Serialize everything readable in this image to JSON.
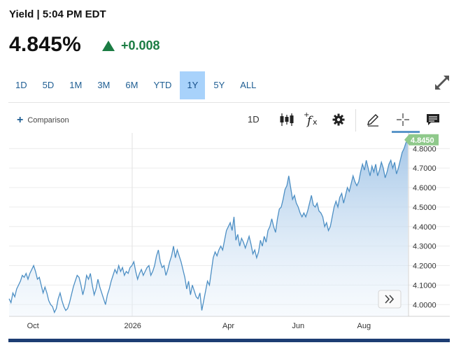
{
  "header": {
    "title": "Yield | 5:04 PM EDT"
  },
  "quote": {
    "price": "4.845%",
    "change": "+0.008",
    "direction_icon": "up-triangle-icon",
    "change_color": "#1b7c43"
  },
  "ranges": {
    "items": [
      "1D",
      "5D",
      "1M",
      "3M",
      "6M",
      "YTD",
      "1Y",
      "5Y",
      "ALL"
    ],
    "active": "1Y"
  },
  "toolbar": {
    "comparison_label": "Comparison",
    "interval": "1D",
    "icons": [
      "candlestick-icon",
      "function-icon",
      "gear-icon",
      "pencil-icon",
      "crosshair-icon",
      "comment-icon"
    ],
    "expand_icon": "expand-icon",
    "scroll_icon": "double-chevron-right-icon"
  },
  "colors": {
    "accent": "#1f5e93",
    "active_tab_bg": "#a8d2fb",
    "line": "#4d8fc4",
    "last_label_bg": "#8fc98b"
  },
  "chart_data": {
    "type": "area",
    "x_tick_labels": [
      "Oct",
      "2026",
      "Apr",
      "Jun",
      "Aug"
    ],
    "y_tick_labels": [
      "4.0000",
      "4.1000",
      "4.2000",
      "4.3000",
      "4.4000",
      "4.5000",
      "4.6000",
      "4.7000",
      "4.8000"
    ],
    "last_value_label": "4.8450",
    "ylim": [
      3.94,
      4.88
    ],
    "grid": "horizontal",
    "series": [
      {
        "values": [
          4.03,
          4.01,
          4.06,
          4.04,
          4.08,
          4.1,
          4.12,
          4.15,
          4.14,
          4.16,
          4.13,
          4.16,
          4.18,
          4.2,
          4.17,
          4.13,
          4.14,
          4.1,
          4.06,
          4.09,
          4.06,
          4.02,
          4.0,
          3.99,
          3.96,
          3.98,
          4.03,
          4.06,
          4.02,
          3.99,
          3.97,
          3.98,
          4.01,
          4.05,
          4.09,
          4.12,
          4.15,
          4.14,
          4.1,
          4.05,
          4.09,
          4.15,
          4.13,
          4.16,
          4.1,
          4.05,
          4.08,
          4.13,
          4.09,
          4.06,
          4.03,
          4.0,
          4.05,
          4.08,
          4.12,
          4.15,
          4.18,
          4.16,
          4.2,
          4.17,
          4.19,
          4.15,
          4.17,
          4.16,
          4.19,
          4.2,
          4.22,
          4.17,
          4.13,
          4.16,
          4.18,
          4.15,
          4.17,
          4.19,
          4.2,
          4.15,
          4.17,
          4.2,
          4.25,
          4.28,
          4.22,
          4.19,
          4.2,
          4.15,
          4.18,
          4.22,
          4.25,
          4.3,
          4.24,
          4.28,
          4.25,
          4.22,
          4.18,
          4.14,
          4.08,
          4.12,
          4.05,
          4.1,
          4.07,
          4.04,
          4.03,
          4.06,
          3.97,
          4.02,
          4.07,
          4.12,
          4.1,
          4.17,
          4.24,
          4.27,
          4.25,
          4.28,
          4.3,
          4.28,
          4.33,
          4.38,
          4.4,
          4.42,
          4.38,
          4.45,
          4.33,
          4.36,
          4.3,
          4.34,
          4.32,
          4.29,
          4.32,
          4.35,
          4.31,
          4.26,
          4.28,
          4.24,
          4.27,
          4.33,
          4.3,
          4.35,
          4.32,
          4.38,
          4.4,
          4.44,
          4.4,
          4.37,
          4.44,
          4.49,
          4.5,
          4.54,
          4.59,
          4.61,
          4.66,
          4.6,
          4.54,
          4.56,
          4.52,
          4.5,
          4.47,
          4.45,
          4.47,
          4.45,
          4.48,
          4.52,
          4.56,
          4.51,
          4.5,
          4.52,
          4.48,
          4.47,
          4.45,
          4.4,
          4.42,
          4.38,
          4.4,
          4.45,
          4.5,
          4.53,
          4.5,
          4.55,
          4.57,
          4.52,
          4.56,
          4.6,
          4.58,
          4.62,
          4.66,
          4.63,
          4.61,
          4.63,
          4.68,
          4.72,
          4.69,
          4.74,
          4.7,
          4.66,
          4.71,
          4.68,
          4.72,
          4.66,
          4.69,
          4.73,
          4.7,
          4.65,
          4.68,
          4.72,
          4.74,
          4.7,
          4.73,
          4.67,
          4.7,
          4.74,
          4.78,
          4.8,
          4.83,
          4.845
        ]
      }
    ]
  }
}
